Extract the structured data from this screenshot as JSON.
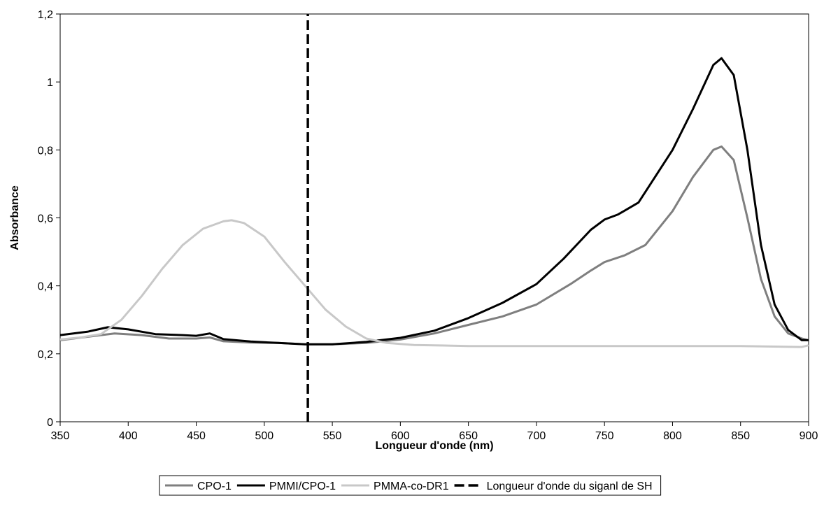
{
  "chart_data": {
    "type": "line",
    "title": "",
    "xlabel": "Longueur d'onde (nm)",
    "ylabel": "Absorbance",
    "xlim": [
      350,
      900
    ],
    "ylim": [
      0,
      1.2
    ],
    "x_ticks": [
      "350",
      "400",
      "450",
      "500",
      "550",
      "600",
      "650",
      "700",
      "750",
      "800",
      "850",
      "900"
    ],
    "x_tick_values": [
      350,
      400,
      450,
      500,
      550,
      600,
      650,
      700,
      750,
      800,
      850,
      900
    ],
    "y_ticks": [
      "0",
      "0,2",
      "0,4",
      "0,6",
      "0,8",
      "1",
      "1,2"
    ],
    "y_tick_values": [
      0,
      0.2,
      0.4,
      0.6,
      0.8,
      1.0,
      1.2
    ],
    "grid": false,
    "legend_position": "bottom",
    "series": [
      {
        "name": "CPO-1",
        "color": "#7f7f7f",
        "dash": "solid",
        "x": [
          350,
          370,
          390,
          410,
          430,
          450,
          460,
          470,
          490,
          510,
          530,
          550,
          575,
          600,
          625,
          650,
          675,
          700,
          725,
          740,
          750,
          765,
          780,
          800,
          815,
          830,
          836,
          845,
          855,
          865,
          875,
          885,
          895,
          900
        ],
        "y": [
          0.24,
          0.25,
          0.26,
          0.255,
          0.245,
          0.245,
          0.248,
          0.237,
          0.233,
          0.232,
          0.228,
          0.228,
          0.232,
          0.242,
          0.26,
          0.285,
          0.31,
          0.345,
          0.405,
          0.445,
          0.47,
          0.49,
          0.52,
          0.62,
          0.72,
          0.8,
          0.81,
          0.77,
          0.6,
          0.42,
          0.31,
          0.26,
          0.245,
          0.24
        ]
      },
      {
        "name": "PMMI/CPO-1",
        "color": "#000000",
        "dash": "solid",
        "x": [
          350,
          370,
          385,
          400,
          420,
          440,
          450,
          460,
          470,
          490,
          510,
          530,
          550,
          575,
          600,
          625,
          650,
          675,
          700,
          720,
          740,
          750,
          760,
          775,
          800,
          815,
          830,
          836,
          845,
          855,
          865,
          875,
          885,
          890,
          895,
          900
        ],
        "y": [
          0.255,
          0.265,
          0.278,
          0.272,
          0.258,
          0.255,
          0.253,
          0.26,
          0.243,
          0.236,
          0.232,
          0.228,
          0.228,
          0.235,
          0.247,
          0.268,
          0.305,
          0.35,
          0.405,
          0.48,
          0.565,
          0.595,
          0.61,
          0.645,
          0.8,
          0.92,
          1.05,
          1.07,
          1.02,
          0.8,
          0.52,
          0.345,
          0.27,
          0.255,
          0.24,
          0.24
        ]
      },
      {
        "name": "PMMA-co-DR1",
        "color": "#c8c8c8",
        "dash": "solid",
        "x": [
          350,
          365,
          380,
          395,
          410,
          425,
          440,
          455,
          470,
          476,
          485,
          500,
          515,
          530,
          545,
          560,
          575,
          590,
          610,
          650,
          700,
          750,
          800,
          850,
          895,
          900
        ],
        "y": [
          0.242,
          0.248,
          0.258,
          0.3,
          0.37,
          0.45,
          0.52,
          0.568,
          0.59,
          0.593,
          0.585,
          0.545,
          0.47,
          0.4,
          0.33,
          0.28,
          0.245,
          0.232,
          0.226,
          0.223,
          0.223,
          0.223,
          0.223,
          0.223,
          0.22,
          0.225
        ]
      },
      {
        "name": "Longueur d'onde du siganl de SH",
        "color": "#000000",
        "dash": "dashed",
        "x": [
          532,
          532
        ],
        "y": [
          0,
          1.2
        ]
      }
    ]
  }
}
